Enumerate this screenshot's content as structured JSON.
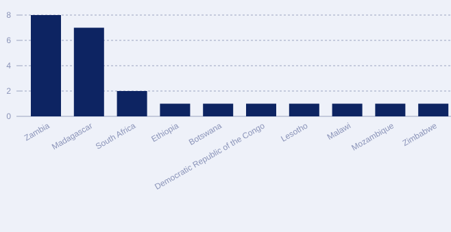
{
  "colors": {
    "background": "#eef1f9",
    "bar": "#0d2462",
    "grid": "#9aa3bf",
    "axis_text": "#8a93b8"
  },
  "chart_data": {
    "type": "bar",
    "title": "",
    "xlabel": "",
    "ylabel": "",
    "categories": [
      "Zambia",
      "Madagascar",
      "South Africa",
      "Ethiopia",
      "Botswana",
      "Democratic Republic of the Congo",
      "Lesotho",
      "Malawi",
      "Mozambique",
      "Zimbabwe"
    ],
    "values": [
      8,
      7,
      2,
      1,
      1,
      1,
      1,
      1,
      1,
      1
    ],
    "ylim": [
      0,
      8
    ],
    "yticks": [
      0,
      2,
      4,
      6,
      8
    ],
    "grid": true,
    "legend": "none"
  }
}
